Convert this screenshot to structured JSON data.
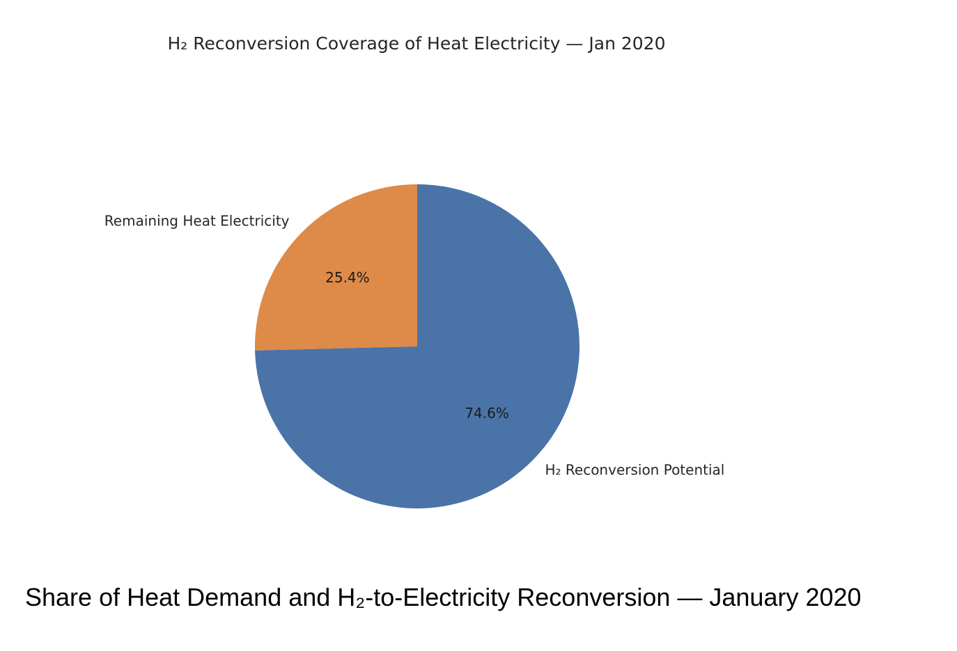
{
  "chart_data": {
    "type": "pie",
    "title": "H₂ Reconversion Coverage of Heat Electricity — Jan 2020",
    "slices": [
      {
        "label": "H₂ Reconversion Potential",
        "value": 74.6,
        "pct_label": "74.6%",
        "color": "#4a73a8"
      },
      {
        "label": "Remaining Heat Electricity",
        "value": 25.4,
        "pct_label": "25.4%",
        "color": "#de8a48"
      }
    ],
    "start_angle": "12 o'clock",
    "direction": "clockwise"
  },
  "caption": "Share of Heat Demand and  H₂-to-Electricity Reconversion — January 2020"
}
